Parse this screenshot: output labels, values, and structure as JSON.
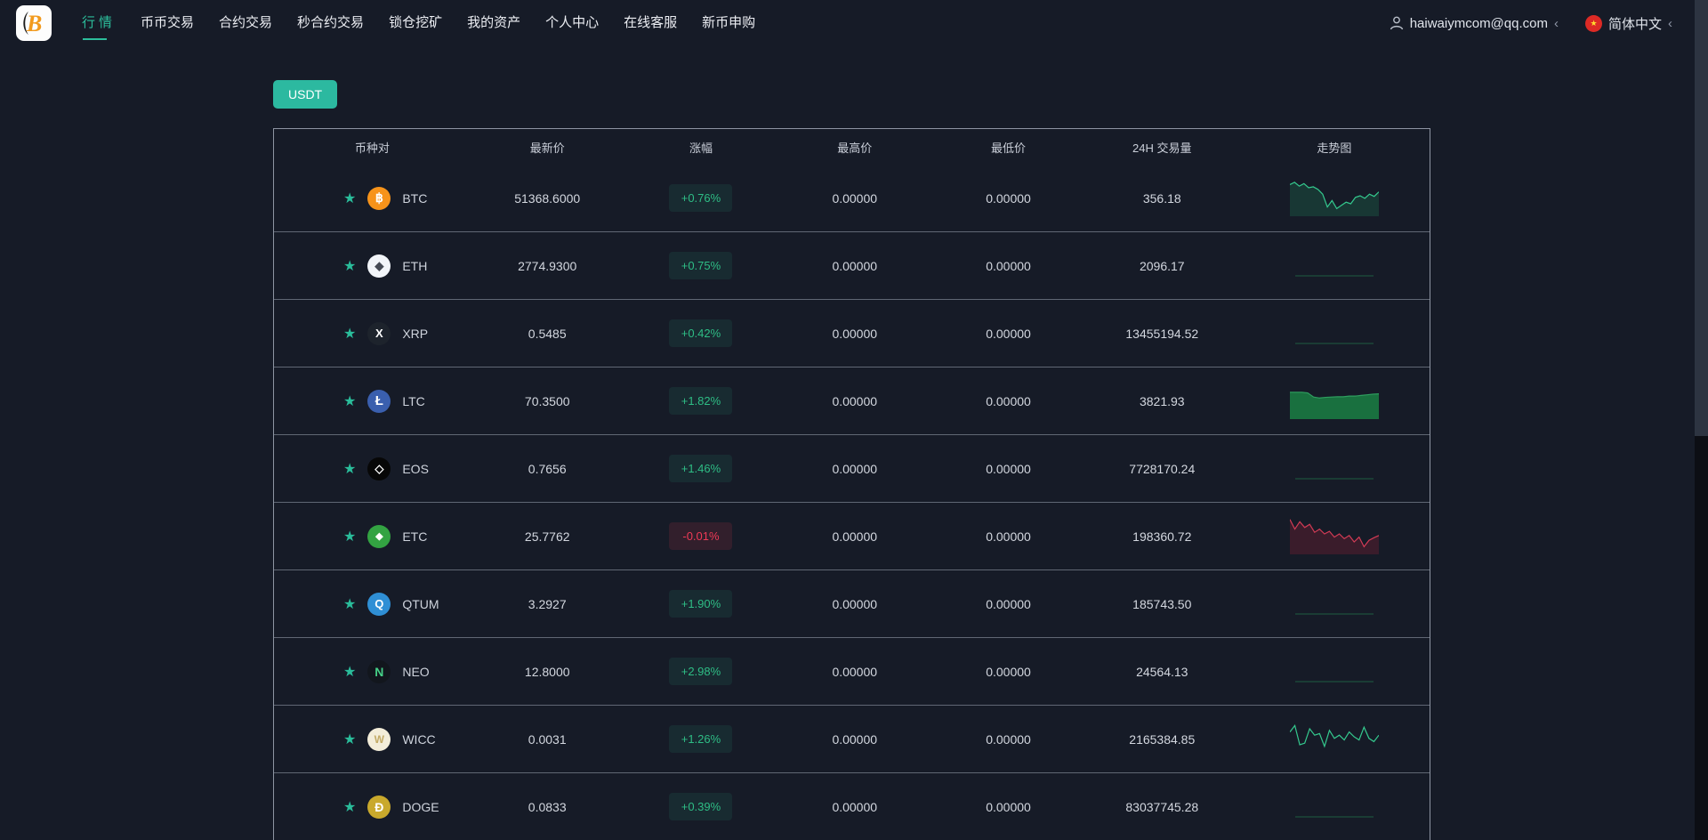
{
  "nav": {
    "items": [
      {
        "label": "行情",
        "active": true
      },
      {
        "label": "币币交易",
        "active": false
      },
      {
        "label": "合约交易",
        "active": false
      },
      {
        "label": "秒合约交易",
        "active": false
      },
      {
        "label": "锁仓挖矿",
        "active": false
      },
      {
        "label": "我的资产",
        "active": false
      },
      {
        "label": "个人中心",
        "active": false
      },
      {
        "label": "在线客服",
        "active": false
      },
      {
        "label": "新币申购",
        "active": false
      }
    ],
    "user": {
      "email": "haiwaiymcom@qq.com",
      "chevron": "‹"
    },
    "language": {
      "label": "简体中文",
      "chevron": "‹",
      "flag_glyph": "★"
    }
  },
  "icons": {
    "star": "★"
  },
  "filters": {
    "usdt_tab_label": "USDT"
  },
  "colors": {
    "accent_teal": "#2cb9a0",
    "up_green": "#2ebd85",
    "down_red": "#ef3a56"
  },
  "table": {
    "headers": [
      "币种对",
      "最新价",
      "涨幅",
      "最高价",
      "最低价",
      "24H 交易量",
      "走势图"
    ],
    "rows": [
      {
        "symbol": "BTC",
        "price": "51368.6000",
        "change": "+0.76%",
        "direction": "up",
        "high": "0.00000",
        "low": "0.00000",
        "volume": "356.18",
        "icon": {
          "glyph": "฿",
          "bg": "#f7931a",
          "color": "#ffffff",
          "size": 14
        },
        "spark": {
          "type": "line",
          "color": "#34c98e",
          "fill": true,
          "fill_color": "#1d7a52",
          "points": [
            0.15,
            0.08,
            0.2,
            0.12,
            0.25,
            0.22,
            0.3,
            0.45,
            0.85,
            0.65,
            0.9,
            0.8,
            0.7,
            0.75,
            0.55,
            0.5,
            0.58,
            0.45,
            0.52,
            0.38
          ]
        }
      },
      {
        "symbol": "ETH",
        "price": "2774.9300",
        "change": "+0.75%",
        "direction": "up",
        "high": "0.00000",
        "low": "0.00000",
        "volume": "2096.17",
        "icon": {
          "glyph": "◆",
          "bg": "#f2f5f9",
          "color": "#454a54",
          "size": 13
        },
        "spark": {
          "type": "flat",
          "color": "#1e5e41"
        }
      },
      {
        "symbol": "XRP",
        "price": "0.5485",
        "change": "+0.42%",
        "direction": "up",
        "high": "0.00000",
        "low": "0.00000",
        "volume": "13455194.52",
        "icon": {
          "glyph": "X",
          "bg": "#1d232c",
          "color": "#ffffff",
          "size": 13
        },
        "spark": {
          "type": "flat",
          "color": "#1e5e41"
        }
      },
      {
        "symbol": "LTC",
        "price": "70.3500",
        "change": "+1.82%",
        "direction": "up",
        "high": "0.00000",
        "low": "0.00000",
        "volume": "3821.93",
        "icon": {
          "glyph": "Ł",
          "bg": "#3a5fae",
          "color": "#ffffff",
          "size": 15
        },
        "spark": {
          "type": "area",
          "color": "#2f9e5f",
          "fill_color": "#1a7a42",
          "points": [
            0.3,
            0.3,
            0.3,
            0.32,
            0.45,
            0.48,
            0.46,
            0.45,
            0.44,
            0.44,
            0.42,
            0.42,
            0.4,
            0.38,
            0.36,
            0.35
          ]
        }
      },
      {
        "symbol": "EOS",
        "price": "0.7656",
        "change": "+1.46%",
        "direction": "up",
        "high": "0.00000",
        "low": "0.00000",
        "volume": "7728170.24",
        "icon": {
          "glyph": "◇",
          "bg": "#070707",
          "color": "#ffffff",
          "size": 13
        },
        "spark": {
          "type": "flat",
          "color": "#1e5e41"
        }
      },
      {
        "symbol": "ETC",
        "price": "25.7762",
        "change": "-0.01%",
        "direction": "down",
        "high": "0.00000",
        "low": "0.00000",
        "volume": "198360.72",
        "icon": {
          "glyph": "◆",
          "bg": "#33a342",
          "color": "#ffffff",
          "size": 11
        },
        "spark": {
          "type": "line",
          "color": "#d23b55",
          "fill": true,
          "fill_color": "#8e2136",
          "points": [
            0.05,
            0.35,
            0.12,
            0.3,
            0.2,
            0.45,
            0.35,
            0.5,
            0.42,
            0.6,
            0.5,
            0.65,
            0.55,
            0.75,
            0.6,
            0.9,
            0.7,
            0.62,
            0.55
          ]
        }
      },
      {
        "symbol": "QTUM",
        "price": "3.2927",
        "change": "+1.90%",
        "direction": "up",
        "high": "0.00000",
        "low": "0.00000",
        "volume": "185743.50",
        "icon": {
          "glyph": "Q",
          "bg": "#2f8fd5",
          "color": "#ffffff",
          "size": 13
        },
        "spark": {
          "type": "flat",
          "color": "#1e5e41"
        }
      },
      {
        "symbol": "NEO",
        "price": "12.8000",
        "change": "+2.98%",
        "direction": "up",
        "high": "0.00000",
        "low": "0.00000",
        "volume": "24564.13",
        "icon": {
          "glyph": "N",
          "bg": "#12161d",
          "color": "#45d087",
          "size": 14
        },
        "spark": {
          "type": "flat",
          "color": "#1e5e41"
        }
      },
      {
        "symbol": "WICC",
        "price": "0.0031",
        "change": "+1.26%",
        "direction": "up",
        "high": "0.00000",
        "low": "0.00000",
        "volume": "2165384.85",
        "icon": {
          "glyph": "W",
          "bg": "#f3edd9",
          "color": "#c3ab67",
          "size": 12
        },
        "spark": {
          "type": "line",
          "color": "#34c98e",
          "fill": false,
          "points": [
            0.35,
            0.15,
            0.75,
            0.7,
            0.25,
            0.45,
            0.4,
            0.8,
            0.3,
            0.55,
            0.45,
            0.6,
            0.35,
            0.5,
            0.6,
            0.2,
            0.55,
            0.65,
            0.45
          ]
        }
      },
      {
        "symbol": "DOGE",
        "price": "0.0833",
        "change": "+0.39%",
        "direction": "up",
        "high": "0.00000",
        "low": "0.00000",
        "volume": "83037745.28",
        "icon": {
          "glyph": "Ð",
          "bg": "#c9a92c",
          "color": "#ffffff",
          "size": 14
        },
        "spark": {
          "type": "flat",
          "color": "#1e5e41"
        }
      }
    ]
  }
}
